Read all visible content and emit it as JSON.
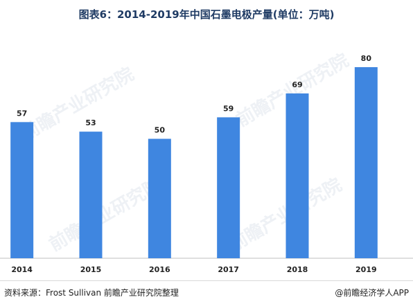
{
  "page": {
    "title": "图表6：2014-2019年中国石墨电极产量(单位：万吨)",
    "source": "资料来源：Frost Sullivan   前瞻产业研究院整理",
    "credit": "@前瞻经济学人APP",
    "watermark": "前瞻产业研究院"
  },
  "chart_data": {
    "type": "bar",
    "title": "图表6：2014-2019年中国石墨电极产量(单位：万吨)",
    "categories": [
      "2014",
      "2015",
      "2016",
      "2017",
      "2018",
      "2019"
    ],
    "values": [
      57,
      53,
      50,
      59,
      69,
      80
    ],
    "ylim": [
      0,
      85
    ],
    "grid": false,
    "bar_color": "#3f86e0"
  }
}
